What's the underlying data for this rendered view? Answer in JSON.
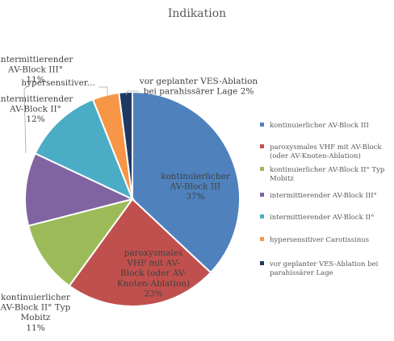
{
  "chart_data": {
    "type": "pie",
    "title": "Indikation",
    "slices": [
      {
        "label": "kontinuierlicher AV-Block III",
        "value": 37,
        "color": "#4F81BD",
        "data_label": [
          "kontinuierlicher",
          "AV-Block III",
          "37%"
        ]
      },
      {
        "label": "paroxysmales VHF mit AV-Block (oder AV-Knoten-Ablation)",
        "value": 23,
        "color": "#C0504D",
        "data_label": [
          "paroxysmales",
          "VHF mit AV-",
          "Block (oder AV-",
          "Knoten-Ablation)",
          "23%"
        ]
      },
      {
        "label": "kontinuierlicher AV-Block II° Typ Mobitz",
        "value": 11,
        "color": "#9BBB59",
        "data_label": [
          "kontinuierlicher",
          "AV-Block II° Typ",
          "Mobitz",
          "11%"
        ]
      },
      {
        "label": "intermittierender AV-Block III°",
        "value": 11,
        "color": "#8064A2",
        "data_label": [
          "intermittierender",
          "AV-Block III°",
          "11%"
        ]
      },
      {
        "label": "intermittierender AV-Block II°",
        "value": 12,
        "color": "#4BACC6",
        "data_label": [
          "intermittierender",
          "AV-Block II°",
          "12%"
        ]
      },
      {
        "label": "hypersensitiver Carotissinus",
        "value": 4,
        "color": "#F79646",
        "data_label": [
          "hypersensitiver..."
        ]
      },
      {
        "label": "vor geplanter VES-Ablation bei parahissärer Lage",
        "value": 2,
        "color": "#1F3864",
        "data_label": [
          "vor geplanter VES-Ablation",
          "bei parahissärer Lage 2%"
        ]
      }
    ],
    "legend": [
      [
        "kontinuierlicher AV-Block III"
      ],
      [
        "paroxysmales VHF mit AV-Block",
        "(oder AV-Knoten-Ablation)"
      ],
      [
        " kontinuierlicher AV-Block II° Typ",
        "Mobitz"
      ],
      [
        " intermittierender AV-Block III°"
      ],
      [
        "intermittierender AV-Block II°"
      ],
      [
        "hypersensitiver Carotissinus"
      ],
      [
        "vor geplanter VES-Ablation bei",
        "parahissärer Lage"
      ]
    ],
    "legend_position": "right"
  }
}
